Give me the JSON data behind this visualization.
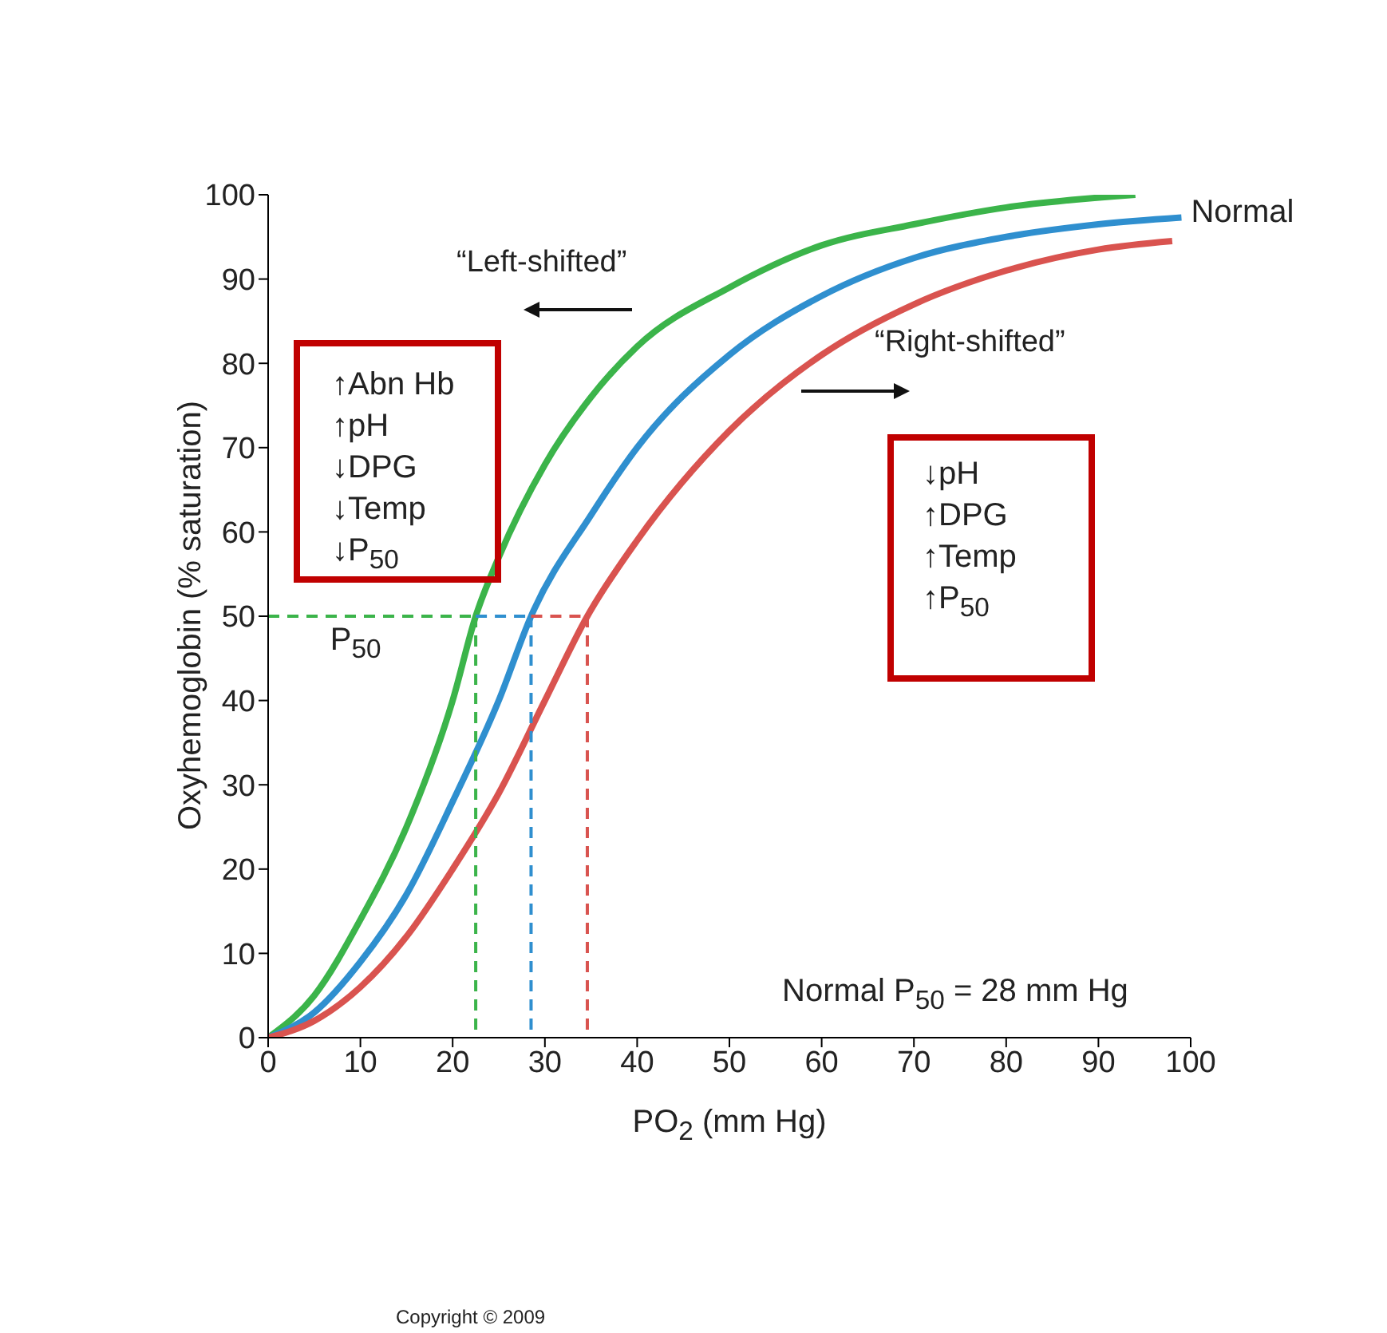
{
  "chart_data": {
    "type": "line",
    "xlabel": "PO$_{2}$ (mm Hg)",
    "ylabel": "Oxyhemoglobin (% saturation)",
    "xlim": [
      0,
      100
    ],
    "xticks": [
      0,
      10,
      20,
      30,
      40,
      50,
      60,
      70,
      80,
      90,
      100
    ],
    "ylim": [
      0,
      100
    ],
    "yticks": [
      0,
      10,
      20,
      30,
      40,
      50,
      60,
      70,
      80,
      90,
      100
    ],
    "marker": "none",
    "line_style": "solid",
    "series": [
      {
        "color": "#3bb44a",
        "x": [
          0,
          5,
          10,
          15,
          20,
          22.5,
          25,
          30,
          35,
          40,
          50,
          60,
          70,
          80,
          94
        ],
        "values": [
          0,
          5,
          14,
          25,
          40,
          50,
          57,
          68,
          76,
          82,
          89,
          94,
          96.5,
          98.5,
          100
        ]
      },
      {
        "name": "Normal",
        "color": "#2f8fcf",
        "x": [
          0,
          5,
          10,
          15,
          20,
          25,
          28.5,
          35,
          40,
          50,
          60,
          70,
          80,
          90,
          99
        ],
        "values": [
          0,
          3,
          9,
          17,
          28,
          40,
          50,
          62,
          70,
          81,
          88,
          92.5,
          95,
          96.5,
          97.3
        ]
      },
      {
        "color": "#d9534f",
        "x": [
          0,
          5,
          10,
          15,
          20,
          25,
          30,
          34.6,
          40,
          50,
          60,
          70,
          80,
          90,
          98
        ],
        "values": [
          0,
          2,
          6,
          12,
          20,
          29,
          40,
          50,
          59,
          72,
          81,
          87,
          91,
          93.5,
          94.5
        ]
      },
      {
        "color": "#3bb44a",
        "line_style": "dashed",
        "x": [
          0,
          22.5
        ],
        "values": [
          50,
          50
        ]
      },
      {
        "color": "#3bb44a",
        "line_style": "dashed",
        "x": [
          22.5,
          22.5
        ],
        "values": [
          50,
          0
        ]
      },
      {
        "color": "#2f8fcf",
        "line_style": "dashed",
        "x": [
          22.5,
          28.5
        ],
        "values": [
          50,
          50
        ]
      },
      {
        "color": "#2f8fcf",
        "line_style": "dashed",
        "x": [
          28.5,
          28.5
        ],
        "values": [
          50,
          0
        ]
      },
      {
        "color": "#d9534f",
        "line_style": "dashed",
        "x": [
          28.5,
          34.6
        ],
        "values": [
          50,
          50
        ]
      },
      {
        "color": "#d9534f",
        "line_style": "dashed",
        "x": [
          34.6,
          34.6
        ],
        "values": [
          50,
          0
        ]
      }
    ],
    "annotations": [
      "“Left-shifted”",
      "“Right-shifted”",
      "↑Abn Hb\n↑pH\n↓DPG\n↓Temp\n↓P$_{50}$",
      "↓pH\n↑DPG\n↑Temp\n↑P$_{50}$",
      {
        "text": "P$_{50}$",
        "x": 5,
        "y": 50
      },
      "Normal P$_{50}$ = 28 mm Hg",
      "Copyright © 2009"
    ]
  }
}
